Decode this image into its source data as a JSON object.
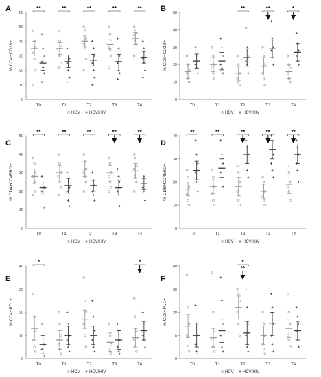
{
  "legend": {
    "hcv_label": "HCV",
    "hiv_label": "HCV/HIV",
    "hcv_color": "#9a9a9a",
    "hiv_color": "#3a3a3a"
  },
  "chart_data": [
    {
      "panel": "A",
      "type": "scatter",
      "ylabel": "% CD4+CD28+",
      "ylim": [
        0,
        60
      ],
      "yticks": [
        0,
        10,
        20,
        30,
        40,
        50,
        60
      ],
      "categories": [
        "T0",
        "T1",
        "T2",
        "T3",
        "T4"
      ],
      "series": [
        {
          "name": "HCV",
          "mean": [
            35,
            35,
            40,
            38,
            42
          ],
          "sem": [
            5,
            4,
            4,
            3,
            4
          ],
          "points": [
            [
              47,
              40,
              36,
              32,
              28,
              20,
              10
            ],
            [
              47,
              40,
              37,
              34,
              30,
              25,
              22
            ],
            [
              50,
              48,
              42,
              38,
              36,
              28,
              20
            ],
            [
              50,
              45,
              40,
              36,
              34,
              30,
              22
            ],
            [
              50,
              48,
              46,
              44,
              40,
              38,
              30
            ]
          ]
        },
        {
          "name": "HCV/HIV",
          "mean": [
            25,
            26,
            27,
            26,
            29
          ],
          "sem": [
            5,
            4,
            4,
            5,
            4
          ],
          "points": [
            [
              45,
              35,
              30,
              26,
              22,
              18,
              12
            ],
            [
              35,
              30,
              28,
              25,
              20,
              15,
              12
            ],
            [
              40,
              35,
              30,
              25,
              20,
              15,
              10
            ],
            [
              42,
              35,
              30,
              25,
              20,
              18,
              14
            ],
            [
              40,
              35,
              30,
              28,
              25,
              20,
              15
            ]
          ]
        }
      ],
      "significance": [
        {
          "category": "T0",
          "label": "**"
        },
        {
          "category": "T1",
          "label": "**"
        },
        {
          "category": "T2",
          "label": "**"
        },
        {
          "category": "T3",
          "label": "**"
        },
        {
          "category": "T4",
          "label": "**"
        }
      ]
    },
    {
      "panel": "B",
      "type": "scatter",
      "ylabel": "% CD8+CD28+",
      "ylim": [
        0,
        50
      ],
      "yticks": [
        0,
        10,
        20,
        30,
        40,
        50
      ],
      "categories": [
        "T0",
        "T1",
        "T2",
        "T3",
        "T4"
      ],
      "series": [
        {
          "name": "HCV",
          "mean": [
            16,
            20,
            15,
            19,
            16
          ],
          "sem": [
            4,
            4,
            4,
            5,
            4
          ],
          "points": [
            [
              25,
              20,
              17,
              15,
              12,
              10
            ],
            [
              30,
              25,
              20,
              18,
              15,
              12
            ],
            [
              25,
              20,
              15,
              12,
              10,
              8
            ],
            [
              30,
              25,
              20,
              15,
              12,
              8
            ],
            [
              25,
              20,
              18,
              15,
              12,
              10
            ]
          ]
        },
        {
          "name": "HCV/HIV",
          "mean": [
            22,
            22,
            24,
            29,
            27
          ],
          "sem": [
            4,
            5,
            5,
            5,
            5
          ],
          "points": [
            [
              30,
              25,
              22,
              20,
              18,
              15
            ],
            [
              35,
              30,
              25,
              20,
              18,
              15
            ],
            [
              41,
              30,
              25,
              22,
              20,
              15
            ],
            [
              45,
              35,
              30,
              28,
              25,
              20
            ],
            [
              38,
              32,
              28,
              25,
              22,
              20
            ]
          ]
        }
      ],
      "significance": [
        {
          "category": "T2",
          "label": "**"
        },
        {
          "category": "T3",
          "label": "**"
        },
        {
          "category": "T3",
          "label": "▼"
        },
        {
          "category": "T4",
          "label": "*"
        },
        {
          "category": "T4",
          "label": "▼"
        }
      ]
    },
    {
      "panel": "C",
      "type": "scatter",
      "ylabel": "% CD4+CD45RO+",
      "ylim": [
        0,
        50
      ],
      "yticks": [
        0,
        10,
        20,
        30,
        40,
        50
      ],
      "categories": [
        "T0",
        "T1",
        "T2",
        "T3",
        "T4"
      ],
      "series": [
        {
          "name": "HCV",
          "mean": [
            28,
            30,
            32,
            30,
            31
          ],
          "sem": [
            4,
            4,
            4,
            4,
            4
          ],
          "points": [
            [
              38,
              35,
              30,
              28,
              25,
              20,
              18
            ],
            [
              40,
              35,
              30,
              28,
              25,
              22,
              18
            ],
            [
              40,
              36,
              32,
              30,
              28,
              25,
              20
            ],
            [
              38,
              35,
              30,
              28,
              25,
              22,
              20
            ],
            [
              40,
              38,
              34,
              32,
              28,
              25,
              20
            ]
          ]
        },
        {
          "name": "HCV/HIV",
          "mean": [
            22,
            23,
            23,
            22,
            24
          ],
          "sem": [
            3,
            4,
            3,
            4,
            3
          ],
          "points": [
            [
              28,
              25,
              22,
              20,
              18,
              11
            ],
            [
              30,
              25,
              22,
              20,
              15,
              12
            ],
            [
              30,
              26,
              23,
              20,
              18,
              15
            ],
            [
              32,
              28,
              25,
              20,
              18,
              12
            ],
            [
              32,
              28,
              25,
              22,
              20,
              15
            ]
          ]
        }
      ],
      "significance": [
        {
          "category": "T0",
          "label": "**"
        },
        {
          "category": "T1",
          "label": "**"
        },
        {
          "category": "T2",
          "label": "**"
        },
        {
          "category": "T3",
          "label": "**"
        },
        {
          "category": "T3",
          "label": "▼"
        },
        {
          "category": "T4",
          "label": "**"
        },
        {
          "category": "T4",
          "label": "▼"
        }
      ]
    },
    {
      "panel": "D",
      "type": "scatter",
      "ylabel": "% CD8+CD45RO+",
      "ylim": [
        0,
        40
      ],
      "yticks": [
        0,
        10,
        20,
        30,
        40
      ],
      "categories": [
        "T0",
        "T1",
        "T2",
        "T3",
        "T4"
      ],
      "series": [
        {
          "name": "HCV",
          "mean": [
            17,
            18,
            18,
            16,
            19
          ],
          "sem": [
            3,
            3,
            4,
            3,
            4
          ],
          "points": [
            [
              25,
              22,
              18,
              15,
              12,
              10
            ],
            [
              25,
              22,
              18,
              15,
              12,
              10
            ],
            [
              27,
              24,
              20,
              16,
              12,
              10
            ],
            [
              22,
              20,
              16,
              14,
              12,
              10
            ],
            [
              27,
              24,
              20,
              18,
              16,
              12
            ]
          ]
        },
        {
          "name": "HCV/HIV",
          "mean": [
            25,
            26,
            32,
            34,
            32
          ],
          "sem": [
            4,
            4,
            4,
            4,
            4
          ],
          "points": [
            [
              38,
              32,
              28,
              24,
              20,
              16
            ],
            [
              38,
              32,
              28,
              24,
              20,
              18
            ],
            [
              38,
              35,
              32,
              28,
              25,
              22
            ],
            [
              40,
              36,
              32,
              28,
              25,
              22
            ],
            [
              38,
              35,
              32,
              28,
              25,
              20
            ]
          ]
        }
      ],
      "significance": [
        {
          "category": "T0",
          "label": "**"
        },
        {
          "category": "T1",
          "label": "**"
        },
        {
          "category": "T2",
          "label": "**"
        },
        {
          "category": "T2",
          "label": "▼"
        },
        {
          "category": "T3",
          "label": "**"
        },
        {
          "category": "T3",
          "label": "▼"
        },
        {
          "category": "T4",
          "label": "**"
        },
        {
          "category": "T4",
          "label": "▼"
        }
      ]
    },
    {
      "panel": "E",
      "type": "scatter",
      "ylabel": "% CD4+PD1+",
      "ylim": [
        0,
        40
      ],
      "yticks": [
        0,
        10,
        20,
        30,
        40
      ],
      "categories": [
        "T0",
        "T1",
        "T2",
        "T3",
        "T4"
      ],
      "series": [
        {
          "name": "HCV",
          "mean": [
            13,
            8,
            17,
            7,
            9
          ],
          "sem": [
            5,
            4,
            4,
            4,
            4
          ],
          "points": [
            [
              28,
              18,
              12,
              8,
              5,
              3
            ],
            [
              20,
              15,
              10,
              6,
              4,
              2
            ],
            [
              35,
              25,
              20,
              15,
              10,
              5
            ],
            [
              15,
              10,
              6,
              4,
              3,
              2
            ],
            [
              26,
              18,
              12,
              8,
              5,
              3
            ]
          ]
        },
        {
          "name": "HCV/HIV",
          "mean": [
            6,
            10,
            10,
            8,
            12
          ],
          "sem": [
            4,
            4,
            4,
            4,
            4
          ],
          "points": [
            [
              15,
              10,
              6,
              4,
              2,
              1
            ],
            [
              20,
              15,
              10,
              8,
              5,
              3
            ],
            [
              25,
              18,
              12,
              8,
              5,
              3
            ],
            [
              15,
              12,
              8,
              5,
              3,
              2
            ],
            [
              20,
              15,
              12,
              10,
              8,
              5
            ]
          ]
        }
      ],
      "significance": [
        {
          "category": "T0",
          "label": "*"
        },
        {
          "category": "T4",
          "label": "*"
        },
        {
          "category": "T4",
          "label": "▼"
        }
      ]
    },
    {
      "panel": "F",
      "type": "scatter",
      "ylabel": "% CD8+PD1+",
      "ylim": [
        0,
        40
      ],
      "yticks": [
        0,
        10,
        20,
        30,
        40
      ],
      "categories": [
        "T0",
        "T1",
        "T2",
        "T3",
        "T4"
      ],
      "series": [
        {
          "name": "HCV",
          "mean": [
            14,
            9,
            22,
            10,
            13
          ],
          "sem": [
            5,
            4,
            5,
            4,
            4
          ],
          "points": [
            [
              36,
              22,
              15,
              10,
              5,
              3
            ],
            [
              37,
              20,
              12,
              8,
              5,
              3
            ],
            [
              30,
              28,
              25,
              20,
              15,
              10
            ],
            [
              20,
              15,
              10,
              6,
              4,
              2
            ],
            [
              28,
              20,
              15,
              10,
              8,
              5
            ]
          ]
        },
        {
          "name": "HCV/HIV",
          "mean": [
            10,
            12,
            11,
            15,
            12
          ],
          "sem": [
            5,
            5,
            5,
            5,
            4
          ],
          "points": [
            [
              23,
              15,
              10,
              6,
              3,
              2
            ],
            [
              35,
              25,
              15,
              10,
              5,
              3
            ],
            [
              30,
              22,
              15,
              10,
              5,
              3
            ],
            [
              28,
              22,
              15,
              10,
              6,
              3
            ],
            [
              22,
              18,
              15,
              12,
              8,
              5
            ]
          ]
        }
      ],
      "significance": [
        {
          "category": "T2",
          "label": "*"
        },
        {
          "category": "T2",
          "label": "**"
        },
        {
          "category": "T2",
          "label": "▼"
        }
      ]
    }
  ]
}
